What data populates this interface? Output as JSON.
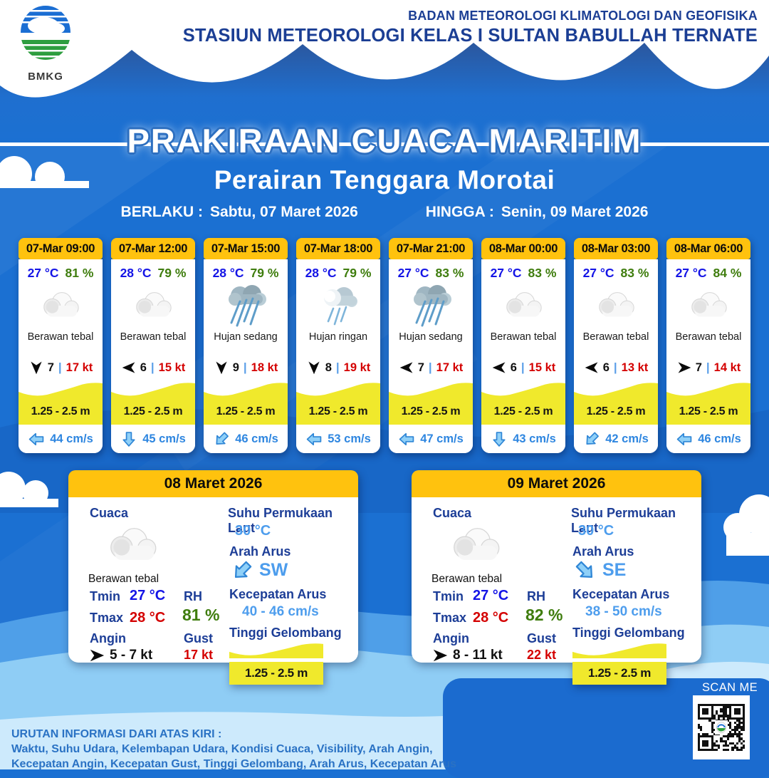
{
  "header": {
    "logo_text": "BMKG",
    "agency_line1": "BADAN METEOROLOGI KLIMATOLOGI DAN GEOFISIKA",
    "agency_line2": "STASIUN METEOROLOGI KELAS I SULTAN BABULLAH TERNATE"
  },
  "title": "PRAKIRAAN CUACA MARITIM",
  "subtitle": "Perairan Tenggara Morotai",
  "validity": {
    "from_label": "BERLAKU :",
    "from_value": "Sabtu, 07 Maret 2026",
    "to_label": "HINGGA :",
    "to_value": "Senin, 09 Maret 2026"
  },
  "ui": {
    "wind_separator": "|",
    "scan_me": "SCAN ME"
  },
  "forecast_cards": [
    {
      "time": "07-Mar 09:00",
      "temp": "27 °C",
      "humidity": "81 %",
      "condition": "Berawan tebal",
      "icon": "cloud",
      "wind_speed": "7",
      "gust": "17 kt",
      "wind_dir": "S",
      "wind_dir_deg": 90,
      "wave": "1.25 - 2.5 m",
      "current_speed": "44 cm/s",
      "current_dir": "W",
      "current_dir_deg": 180
    },
    {
      "time": "07-Mar 12:00",
      "temp": "28 °C",
      "humidity": "79 %",
      "condition": "Berawan tebal",
      "icon": "cloud",
      "wind_speed": "6",
      "gust": "15 kt",
      "wind_dir": "W",
      "wind_dir_deg": 180,
      "wave": "1.25 - 2.5 m",
      "current_speed": "45 cm/s",
      "current_dir": "S",
      "current_dir_deg": 90
    },
    {
      "time": "07-Mar 15:00",
      "temp": "28 °C",
      "humidity": "79 %",
      "condition": "Hujan sedang",
      "icon": "rain-mid",
      "wind_speed": "9",
      "gust": "18 kt",
      "wind_dir": "S",
      "wind_dir_deg": 90,
      "wave": "1.25 - 2.5 m",
      "current_speed": "46 cm/s",
      "current_dir": "SW",
      "current_dir_deg": 135
    },
    {
      "time": "07-Mar 18:00",
      "temp": "28 °C",
      "humidity": "79 %",
      "condition": "Hujan ringan",
      "icon": "rain-light",
      "wind_speed": "8",
      "gust": "19 kt",
      "wind_dir": "S",
      "wind_dir_deg": 90,
      "wave": "1.25 - 2.5 m",
      "current_speed": "53 cm/s",
      "current_dir": "W",
      "current_dir_deg": 180
    },
    {
      "time": "07-Mar 21:00",
      "temp": "27 °C",
      "humidity": "83 %",
      "condition": "Hujan sedang",
      "icon": "rain-mid",
      "wind_speed": "7",
      "gust": "17 kt",
      "wind_dir": "W",
      "wind_dir_deg": 180,
      "wave": "1.25 - 2.5 m",
      "current_speed": "47 cm/s",
      "current_dir": "W",
      "current_dir_deg": 180
    },
    {
      "time": "08-Mar 00:00",
      "temp": "27 °C",
      "humidity": "83 %",
      "condition": "Berawan tebal",
      "icon": "cloud",
      "wind_speed": "6",
      "gust": "15 kt",
      "wind_dir": "W",
      "wind_dir_deg": 180,
      "wave": "1.25 - 2.5 m",
      "current_speed": "43 cm/s",
      "current_dir": "S",
      "current_dir_deg": 90
    },
    {
      "time": "08-Mar 03:00",
      "temp": "27 °C",
      "humidity": "83 %",
      "condition": "Berawan tebal",
      "icon": "cloud",
      "wind_speed": "6",
      "gust": "13 kt",
      "wind_dir": "W",
      "wind_dir_deg": 180,
      "wave": "1.25 - 2.5 m",
      "current_speed": "42 cm/s",
      "current_dir": "SW",
      "current_dir_deg": 135
    },
    {
      "time": "08-Mar 06:00",
      "temp": "27 °C",
      "humidity": "84 %",
      "condition": "Berawan tebal",
      "icon": "cloud",
      "wind_speed": "7",
      "gust": "14 kt",
      "wind_dir": "E",
      "wind_dir_deg": 0,
      "wave": "1.25 - 2.5 m",
      "current_speed": "46 cm/s",
      "current_dir": "W",
      "current_dir_deg": 180
    }
  ],
  "daily_labels": {
    "cuaca": "Cuaca",
    "tmin": "Tmin",
    "tmax": "Tmax",
    "angin": "Angin",
    "rh": "RH",
    "gust": "Gust",
    "sst": "Suhu Permukaan Laut",
    "arah_arus": "Arah Arus",
    "kecepatan_arus": "Kecepatan Arus",
    "tinggi_gelombang": "Tinggi Gelombang"
  },
  "daily_cards": [
    {
      "date": "08 Maret 2026",
      "condition": "Berawan tebal",
      "tmin": "27 °C",
      "tmax": "28 °C",
      "wind": "5 - 7 kt",
      "rh": "81 %",
      "gust": "17 kt",
      "sst": "30 °C",
      "current_dir": "SW",
      "current_dir_deg": 135,
      "current_speed": "40 - 46 cm/s",
      "wave": "1.25 - 2.5 m"
    },
    {
      "date": "09 Maret 2026",
      "condition": "Berawan tebal",
      "tmin": "27 °C",
      "tmax": "28 °C",
      "wind": "8 - 11 kt",
      "rh": "82 %",
      "gust": "22 kt",
      "sst": "30 °C",
      "current_dir": "SE",
      "current_dir_deg": 45,
      "current_speed": "38 - 50 cm/s",
      "wave": "1.25 - 2.5 m"
    }
  ],
  "footer": {
    "line1": "URUTAN INFORMASI DARI ATAS KIRI :",
    "line2": "Waktu, Suhu Udara, Kelembapan Udara, Kondisi Cuaca, Visibility, Arah Angin,",
    "line3": "Kecepatan Angin, Kecepatan Gust, Tinggi Gelombang, Arah Arus, Kecepatan Arus"
  },
  "colors": {
    "background_blue": "#1b70d2",
    "header_yellow": "#ffc20e",
    "wave_yellow": "#f0e92c",
    "temp_blue": "#1414e6",
    "humidity_green": "#3f7d0e",
    "gust_red": "#d40000",
    "current_blue": "#2e86e0",
    "navy": "#1d3e97",
    "panel_blue": "#1b6bcf"
  }
}
